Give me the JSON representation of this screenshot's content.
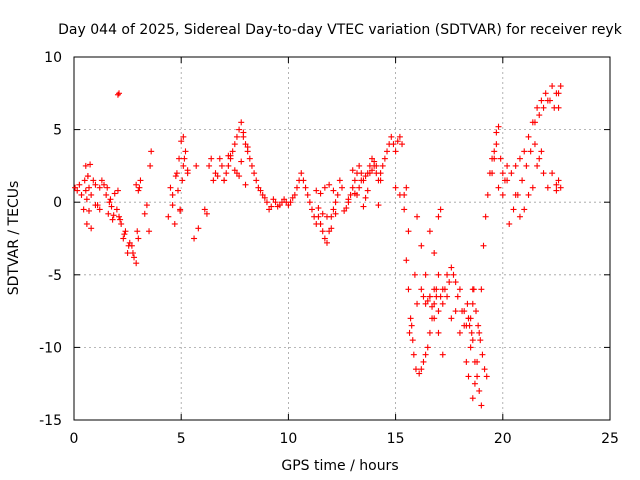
{
  "chart_data": {
    "type": "scatter",
    "title": "Day 044 of 2025, Sidereal Day-to-day VTEC variation (SDTVAR) for receiver reyk",
    "xlabel": "GPS time / hours",
    "ylabel": "SDTVAR / TECUs",
    "xlim": [
      0,
      25
    ],
    "ylim": [
      -15,
      10
    ],
    "xticks": [
      0,
      5,
      10,
      15,
      20,
      25
    ],
    "xtick_labels": [
      "0",
      "5",
      "10",
      "15",
      "20",
      "25"
    ],
    "yticks": [
      -15,
      -10,
      -5,
      0,
      5,
      10
    ],
    "ytick_labels": [
      "-15",
      "-10",
      "-5",
      "0",
      "5",
      "10"
    ],
    "grid": true,
    "marker": "+",
    "color": "#ff0000",
    "series": [
      {
        "name": "SDTVAR",
        "x": [
          0.05,
          0.15,
          0.25,
          0.35,
          0.45,
          0.5,
          0.55,
          0.6,
          0.65,
          0.7,
          0.8,
          0.9,
          1.0,
          1.1,
          1.2,
          1.3,
          1.4,
          0.6,
          0.7,
          0.8,
          1.0,
          1.2,
          0.55,
          0.65,
          0.75,
          1.5,
          1.6,
          1.7,
          1.8,
          1.9,
          2.0,
          2.1,
          2.2,
          1.55,
          1.65,
          1.75,
          1.85,
          2.05,
          2.15,
          2.3,
          2.4,
          2.5,
          2.6,
          2.7,
          2.8,
          2.9,
          3.0,
          2.35,
          2.55,
          2.75,
          2.95,
          2.05,
          2.1,
          2.9,
          3.0,
          3.1,
          3.05,
          3.3,
          3.4,
          3.5,
          3.55,
          3.6,
          4.4,
          4.5,
          4.6,
          4.7,
          4.8,
          4.9,
          5.0,
          5.1,
          5.2,
          5.3,
          4.6,
          4.75,
          4.95,
          5.15,
          4.85,
          5.05,
          4.95,
          5.1,
          5.3,
          5.6,
          5.8,
          5.7,
          6.1,
          6.2,
          6.3,
          6.4,
          6.5,
          6.6,
          6.7,
          6.8,
          6.9,
          7.0,
          7.1,
          7.2,
          7.3,
          7.4,
          7.5,
          7.6,
          7.7,
          7.8,
          7.9,
          8.0,
          8.1,
          8.2,
          8.3,
          8.4,
          8.5,
          8.6,
          8.7,
          8.8,
          7.3,
          7.5,
          7.7,
          7.9,
          8.1,
          7.6,
          7.8,
          8.0,
          7.0,
          7.2,
          8.9,
          9.0,
          9.1,
          9.2,
          9.3,
          9.4,
          9.5,
          9.6,
          9.7,
          9.8,
          9.9,
          10.0,
          10.1,
          10.2,
          10.3,
          10.4,
          10.5,
          10.6,
          10.7,
          10.8,
          10.9,
          11.0,
          11.1,
          11.2,
          11.3,
          11.4,
          11.5,
          11.6,
          11.7,
          11.8,
          11.9,
          12.0,
          12.1,
          12.2,
          12.3,
          12.4,
          12.5,
          11.3,
          11.5,
          11.7,
          11.9,
          12.1,
          11.4,
          11.6,
          11.8,
          12.0,
          12.2,
          12.6,
          12.7,
          12.8,
          12.9,
          13.0,
          13.1,
          13.2,
          13.3,
          13.4,
          13.5,
          13.6,
          13.7,
          13.8,
          13.9,
          14.0,
          14.1,
          14.2,
          14.3,
          14.4,
          14.5,
          14.6,
          14.7,
          14.8,
          14.9,
          15.0,
          15.1,
          15.2,
          15.3,
          15.4,
          15.5,
          12.8,
          13.0,
          13.2,
          13.4,
          13.6,
          13.8,
          14.0,
          14.2,
          13.1,
          13.3,
          13.5,
          13.7,
          13.9,
          14.1,
          14.3,
          15.0,
          15.2,
          15.4,
          15.6,
          15.5,
          15.6,
          15.7,
          15.8,
          15.9,
          16.0,
          15.65,
          15.75,
          15.85,
          15.95,
          16.1,
          16.2,
          16.3,
          16.4,
          16.5,
          16.6,
          16.7,
          16.8,
          16.9,
          17.0,
          16.2,
          16.3,
          16.4,
          16.5,
          16.6,
          16.7,
          16.8,
          16.9,
          17.0,
          17.1,
          16.6,
          16.8,
          17.0,
          17.2,
          17.4,
          17.6,
          17.8,
          18.0,
          18.2,
          18.4,
          18.6,
          17.1,
          17.3,
          17.5,
          17.7,
          17.9,
          18.1,
          18.3,
          17.2,
          17.4,
          17.6,
          17.8,
          18.0,
          18.2,
          18.4,
          16.0,
          16.2,
          16.4,
          16.6,
          16.8,
          17.0,
          17.2,
          18.6,
          18.7,
          18.8,
          18.9,
          19.0,
          19.1,
          19.2,
          19.3,
          19.4,
          19.5,
          19.6,
          19.7,
          18.5,
          18.6,
          18.7,
          18.8,
          18.9,
          19.0,
          18.65,
          18.75,
          18.85,
          18.95,
          19.05,
          19.15,
          19.25,
          18.3,
          18.4,
          18.5,
          18.6,
          18.35,
          18.45,
          18.55,
          19.7,
          19.8,
          19.9,
          20.0,
          20.1,
          20.2,
          19.5,
          19.6,
          19.8,
          20.0,
          20.2,
          20.4,
          20.6,
          20.8,
          21.0,
          21.2,
          21.4,
          21.6,
          21.8,
          22.0,
          22.2,
          22.4,
          22.6,
          20.3,
          20.5,
          20.7,
          20.9,
          21.1,
          21.3,
          21.5,
          21.7,
          21.9,
          22.1,
          22.3,
          22.5,
          22.7,
          20.6,
          20.8,
          21.0,
          21.2,
          21.4,
          21.6,
          21.8,
          21.5,
          21.7,
          21.9,
          22.1,
          22.3,
          22.5,
          22.6,
          22.5,
          22.6,
          22.7
        ],
        "y": [
          1.0,
          0.8,
          1.2,
          0.5,
          -0.5,
          1.5,
          2.5,
          -1.5,
          1.8,
          1.0,
          0.5,
          1.5,
          1.2,
          -0.2,
          1.0,
          1.5,
          1.2,
          0.2,
          -0.6,
          -1.8,
          -0.2,
          -0.5,
          0.8,
          1.8,
          2.6,
          0.5,
          -0.8,
          0.2,
          -1.2,
          0.6,
          -0.5,
          -1.0,
          -1.5,
          1.0,
          0.0,
          -0.3,
          -0.9,
          0.8,
          -1.2,
          -2.5,
          -2.0,
          -3.5,
          -2.8,
          -3.0,
          -3.8,
          -4.2,
          -2.5,
          -2.2,
          -3.0,
          -3.5,
          -2.0,
          7.4,
          7.5,
          1.2,
          0.8,
          1.5,
          1.0,
          -0.8,
          -0.2,
          -2.0,
          2.5,
          3.5,
          -1.0,
          1.0,
          0.5,
          -1.5,
          2.0,
          3.0,
          4.2,
          4.5,
          3.5,
          2.2,
          -0.2,
          1.8,
          -0.5,
          3.0,
          0.8,
          1.5,
          -0.6,
          2.5,
          2.0,
          -2.5,
          -1.8,
          2.5,
          -0.5,
          -0.8,
          2.5,
          3.0,
          1.5,
          2.0,
          1.8,
          3.0,
          2.5,
          1.5,
          2.0,
          2.5,
          3.2,
          3.5,
          4.0,
          4.5,
          5.0,
          5.5,
          4.5,
          4.0,
          3.5,
          3.0,
          2.5,
          2.0,
          1.5,
          1.0,
          0.8,
          0.5,
          3.0,
          2.2,
          1.8,
          4.8,
          3.8,
          2.0,
          2.8,
          1.2,
          1.5,
          3.2,
          0.3,
          0.0,
          -0.5,
          -0.3,
          0.2,
          0.0,
          -0.3,
          -0.2,
          0.0,
          0.2,
          0.0,
          -0.2,
          0.0,
          0.3,
          0.5,
          1.0,
          1.5,
          2.0,
          1.5,
          1.0,
          0.5,
          0.0,
          -0.5,
          -1.0,
          -1.5,
          -1.0,
          -1.5,
          -2.0,
          -2.5,
          -2.8,
          -2.0,
          -1.0,
          -0.5,
          0.0,
          0.5,
          1.5,
          1.0,
          0.8,
          0.6,
          1.0,
          1.2,
          0.8,
          -0.4,
          -0.8,
          -1.0,
          -1.8,
          -0.8,
          -0.6,
          -0.4,
          0.0,
          0.5,
          1.0,
          1.5,
          2.0,
          2.5,
          2.0,
          1.5,
          1.8,
          2.0,
          2.5,
          3.0,
          2.5,
          2.0,
          1.5,
          2.0,
          2.5,
          3.0,
          3.5,
          4.0,
          4.5,
          4.0,
          3.5,
          4.2,
          4.5,
          4.0,
          0.5,
          1.0,
          0.2,
          2.2,
          0.5,
          1.5,
          0.3,
          2.0,
          2.8,
          -0.2,
          0.6,
          1.0,
          -0.3,
          0.8,
          2.2,
          2.5,
          1.5,
          1.0,
          0.5,
          -0.5,
          -2.0,
          -4.0,
          -6.0,
          -8.0,
          -9.5,
          -5.0,
          -7.0,
          -9.0,
          -8.5,
          -10.5,
          -11.5,
          -11.8,
          -11.5,
          -11.0,
          -10.5,
          -10.0,
          -9.0,
          -8.0,
          -7.0,
          -6.0,
          -7.5,
          -6.0,
          -6.5,
          -7.0,
          -6.8,
          -6.5,
          -7.2,
          -6.0,
          -6.5,
          -1.0,
          -0.5,
          -2.0,
          -3.5,
          -5.0,
          -6.0,
          -5.0,
          -4.5,
          -5.5,
          -6.0,
          -7.5,
          -8.0,
          -7.0,
          -6.5,
          -6.0,
          -5.5,
          -5.0,
          -6.5,
          -7.5,
          -8.5,
          -7.0,
          -6.5,
          -8.0,
          -7.5,
          -9.0,
          -8.5,
          -8.0,
          -1.0,
          -3.0,
          -5.0,
          -6.5,
          -8.0,
          -9.0,
          -10.5,
          -13.5,
          -12.5,
          -11.0,
          -9.0,
          -6.0,
          -3.0,
          -1.0,
          0.5,
          2.0,
          3.0,
          3.5,
          4.0,
          -8.0,
          -9.5,
          -11.0,
          -12.0,
          -13.0,
          -14.0,
          -6.0,
          -7.5,
          -8.5,
          -9.5,
          -10.5,
          -11.5,
          -12.0,
          -11.0,
          -12.0,
          -10.0,
          -6.0,
          -7.0,
          -8.5,
          -9.0,
          4.8,
          5.2,
          3.0,
          2.0,
          1.5,
          2.5,
          2.0,
          3.0,
          1.0,
          0.5,
          1.5,
          2.0,
          2.5,
          3.0,
          3.5,
          4.5,
          5.5,
          6.5,
          7.0,
          7.5,
          7.0,
          6.5,
          7.5,
          -1.5,
          -0.5,
          0.5,
          1.5,
          2.5,
          3.5,
          4.0,
          3.0,
          2.0,
          1.0,
          2.0,
          1.2,
          1.0,
          0.5,
          -1.0,
          -0.5,
          0.5,
          1.0,
          2.5,
          3.5,
          5.5,
          6.0,
          6.5,
          7.0,
          8.0,
          7.5,
          6.5,
          0.8,
          1.5,
          8.0
        ]
      }
    ]
  }
}
